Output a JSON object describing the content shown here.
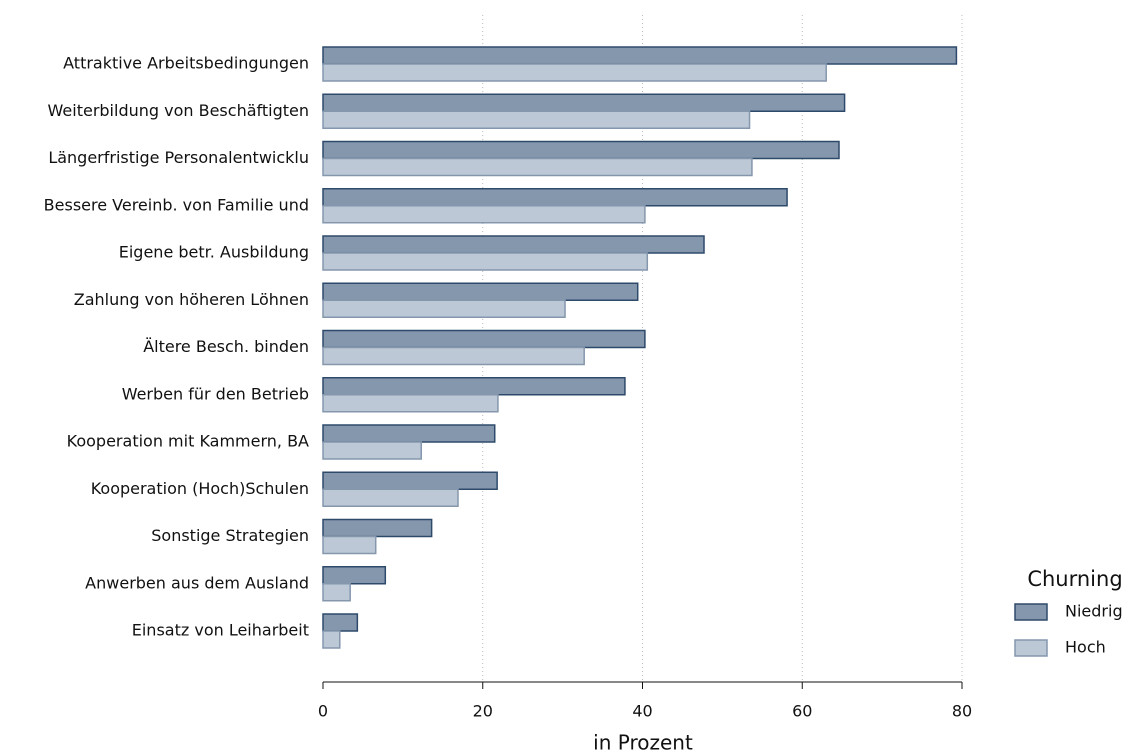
{
  "chart_data": {
    "type": "hbar",
    "x_label": "in Prozent",
    "legend_title": "Churning",
    "legend_position": "right",
    "categories": [
      "Attraktive Arbeitsbedingungen",
      "Weiterbildung von Beschäftigten",
      "Längerfristige Personalentwicklu",
      "Bessere Vereinb. von Familie und",
      "Eigene betr. Ausbildung",
      "Zahlung von höheren Löhnen",
      "Ältere Besch. binden",
      "Werben für den Betrieb",
      "Kooperation mit Kammern, BA",
      "Kooperation (Hoch)Schulen",
      "Sonstige Strategien",
      "Anwerben aus dem Ausland",
      "Einsatz von Leiharbeit"
    ],
    "series": [
      {
        "name": "Niedrig",
        "color": "#8597ad",
        "edge": "#2e4a6b",
        "values": [
          79.3,
          65.3,
          64.6,
          58.1,
          47.7,
          39.4,
          40.3,
          37.8,
          21.5,
          21.8,
          13.6,
          7.8,
          4.3
        ]
      },
      {
        "name": "Hoch",
        "color": "#bcc8d6",
        "edge": "#8597ad",
        "values": [
          63.0,
          53.4,
          53.7,
          40.3,
          40.6,
          30.3,
          32.7,
          21.9,
          12.3,
          16.9,
          6.6,
          3.4,
          2.1
        ]
      }
    ],
    "xlim": [
      0,
      80
    ],
    "xticks": [
      0,
      20,
      40,
      60,
      80
    ],
    "grid": true
  }
}
